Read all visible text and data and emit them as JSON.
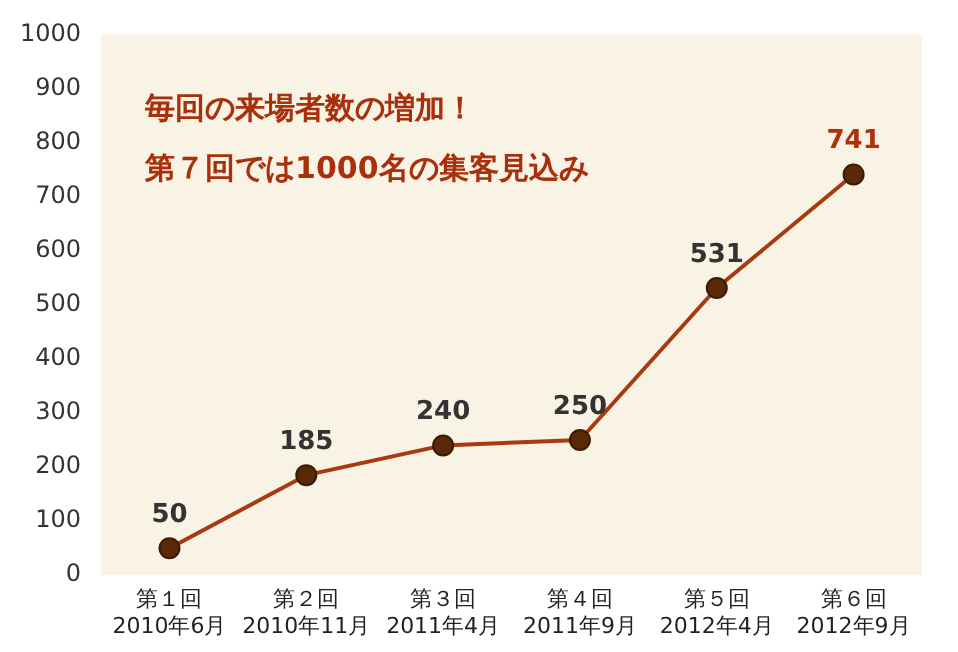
{
  "chart_data": {
    "type": "line",
    "categories": [
      "第１回\n2010年6月",
      "第２回\n2010年11月",
      "第３回\n2011年4月",
      "第４回\n2011年9月",
      "第５回\n2012年4月",
      "第６回\n2012年9月"
    ],
    "series": [
      {
        "color": "#a83a10",
        "values": [
          50,
          185,
          240,
          250,
          531,
          741
        ]
      }
    ],
    "ylim": [
      0,
      1000
    ],
    "yticks": [
      0,
      100,
      200,
      300,
      400,
      500,
      600,
      700,
      800,
      900,
      1000
    ],
    "grid": false,
    "legend": false,
    "marker": "circle",
    "line_style": "solid",
    "data_labels": true,
    "annotations": [
      "毎回の来場者数の増加！",
      "第７回では1000名の集客見込み"
    ]
  }
}
